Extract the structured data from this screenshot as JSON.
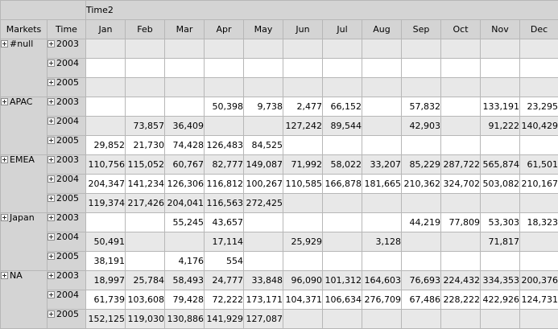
{
  "header": {
    "row_dimension": "Markets",
    "year_dimension": "Time",
    "column_dimension": "Time2"
  },
  "months": [
    "Jan",
    "Feb",
    "Mar",
    "Apr",
    "May",
    "Jun",
    "Jul",
    "Aug",
    "Sep",
    "Oct",
    "Nov",
    "Dec"
  ],
  "markets": [
    {
      "name": "#null",
      "years": [
        {
          "year": "2003",
          "values": [
            "",
            "",
            "",
            "",
            "",
            "",
            "",
            "",
            "",
            "",
            "",
            ""
          ]
        },
        {
          "year": "2004",
          "values": [
            "",
            "",
            "",
            "",
            "",
            "",
            "",
            "",
            "",
            "",
            "",
            ""
          ]
        },
        {
          "year": "2005",
          "values": [
            "",
            "",
            "",
            "",
            "",
            "",
            "",
            "",
            "",
            "",
            "",
            ""
          ]
        }
      ]
    },
    {
      "name": "APAC",
      "years": [
        {
          "year": "2003",
          "values": [
            "",
            "",
            "",
            "50,398",
            "9,738",
            "2,477",
            "66,152",
            "",
            "57,832",
            "",
            "133,191",
            "23,295"
          ]
        },
        {
          "year": "2004",
          "values": [
            "",
            "73,857",
            "36,409",
            "",
            "",
            "127,242",
            "89,544",
            "",
            "42,903",
            "",
            "91,222",
            "140,429"
          ]
        },
        {
          "year": "2005",
          "values": [
            "29,852",
            "21,730",
            "74,428",
            "126,483",
            "84,525",
            "",
            "",
            "",
            "",
            "",
            "",
            ""
          ]
        }
      ]
    },
    {
      "name": "EMEA",
      "years": [
        {
          "year": "2003",
          "values": [
            "110,756",
            "115,052",
            "60,767",
            "82,777",
            "149,087",
            "71,992",
            "58,022",
            "33,207",
            "85,229",
            "287,722",
            "565,874",
            "61,501"
          ]
        },
        {
          "year": "2004",
          "values": [
            "204,347",
            "141,234",
            "126,306",
            "116,812",
            "100,267",
            "110,585",
            "166,878",
            "181,665",
            "210,362",
            "324,702",
            "503,082",
            "210,167"
          ]
        },
        {
          "year": "2005",
          "values": [
            "119,374",
            "217,426",
            "204,041",
            "116,563",
            "272,425",
            "",
            "",
            "",
            "",
            "",
            "",
            ""
          ]
        }
      ]
    },
    {
      "name": "Japan",
      "years": [
        {
          "year": "2003",
          "values": [
            "",
            "",
            "55,245",
            "43,657",
            "",
            "",
            "",
            "",
            "44,219",
            "77,809",
            "53,303",
            "18,323"
          ]
        },
        {
          "year": "2004",
          "values": [
            "50,491",
            "",
            "",
            "17,114",
            "",
            "25,929",
            "",
            "3,128",
            "",
            "",
            "71,817",
            ""
          ]
        },
        {
          "year": "2005",
          "values": [
            "38,191",
            "",
            "4,176",
            "554",
            "",
            "",
            "",
            "",
            "",
            "",
            "",
            ""
          ]
        }
      ]
    },
    {
      "name": "NA",
      "years": [
        {
          "year": "2003",
          "values": [
            "18,997",
            "25,784",
            "58,493",
            "24,777",
            "33,848",
            "96,090",
            "101,312",
            "164,603",
            "76,693",
            "224,432",
            "334,353",
            "200,376"
          ]
        },
        {
          "year": "2004",
          "values": [
            "61,739",
            "103,608",
            "79,428",
            "72,222",
            "173,171",
            "104,371",
            "106,634",
            "276,709",
            "67,486",
            "228,222",
            "422,926",
            "124,731"
          ]
        },
        {
          "year": "2005",
          "values": [
            "152,125",
            "119,030",
            "130,886",
            "141,929",
            "127,087",
            "",
            "",
            "",
            "",
            "",
            "",
            ""
          ]
        }
      ]
    }
  ]
}
